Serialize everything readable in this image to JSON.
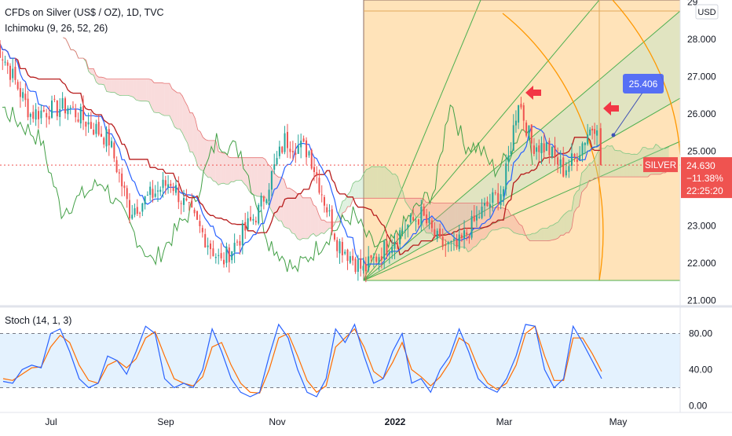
{
  "header": {
    "symbol_title": "CFDs on Silver (US$ / OZ), 1D, TVC",
    "indicator_label": "Ichimoku (9, 26, 52, 26)"
  },
  "stoch_panel": {
    "label": "Stoch (14, 1, 3)"
  },
  "price_axis": {
    "currency_badge": "USD",
    "ticks": [
      "29",
      "28.000",
      "27.000",
      "26.000",
      "25.000",
      "23.000",
      "22.000",
      "21.000"
    ]
  },
  "stoch_axis": {
    "ticks": [
      "80.00",
      "40.00",
      "0.00"
    ]
  },
  "time_axis": {
    "ticks": [
      "Jul",
      "Sep",
      "Nov",
      "2022",
      "Mar",
      "May"
    ]
  },
  "last_price": {
    "symbol_tag": "SILVER",
    "price": "24.630",
    "change": "−11.38%",
    "countdown": "22:25:20"
  },
  "callout": {
    "text": "25.406"
  },
  "colors": {
    "up": "#26a69a",
    "down": "#ef5350",
    "tenkan": "#2962ff",
    "kijun": "#b71c1c",
    "chikou": "#43a047",
    "cloud_green": "#a5d6a7",
    "cloud_red": "#ef9a9a",
    "fan_fill": "#ffcc80",
    "fan_line": "#4caf50",
    "arc": "#ff9800",
    "stoch_k": "#2962ff",
    "stoch_d": "#ff6d00",
    "stoch_band": "#2196f3",
    "arrow": "#f23645",
    "callout": "#3f51b5"
  },
  "chart_data": [
    {
      "type": "candlestick",
      "title": "CFDs on Silver (US$ / OZ), 1D, TVC",
      "ylim": [
        20.95,
        29.05
      ],
      "y_ticks": [
        21,
        22,
        23,
        25,
        26,
        27,
        28,
        29
      ],
      "x_ticks": [
        "Jul",
        "Sep",
        "Nov",
        "2022",
        "Mar",
        "May"
      ],
      "approx_range": [
        "2021-06",
        "2022-04"
      ],
      "path_dates": [
        "2021-06-01",
        "2021-06-20",
        "2021-07-10",
        "2021-08-01",
        "2021-08-12",
        "2021-09-03",
        "2021-09-10",
        "2021-09-30",
        "2021-10-20",
        "2021-11-03",
        "2021-11-16",
        "2021-12-01",
        "2021-12-15",
        "2022-01-05",
        "2022-01-15",
        "2022-01-25",
        "2022-02-03",
        "2022-02-15",
        "2022-02-28",
        "2022-03-08",
        "2022-03-15",
        "2022-03-23",
        "2022-04-01",
        "2022-04-07",
        "2022-04-14",
        "2022-04-19",
        "2022-04-21"
      ],
      "path_close": [
        28.0,
        26.0,
        26.2,
        25.3,
        23.4,
        24.2,
        23.6,
        22.0,
        23.4,
        25.3,
        25.0,
        22.6,
        21.8,
        22.9,
        23.3,
        22.5,
        22.4,
        23.3,
        24.0,
        26.4,
        25.2,
        25.1,
        24.5,
        24.8,
        25.5,
        25.8,
        24.63
      ],
      "last_close": 24.63,
      "change_pct": -11.38,
      "callout_value": 25.406
    },
    {
      "type": "line",
      "title": "Stoch (14, 1, 3)",
      "ylim": [
        -3,
        103
      ],
      "y_ticks": [
        80,
        40,
        0
      ],
      "band": [
        20,
        80
      ],
      "series": [
        {
          "name": "%K",
          "values": [
            27,
            25,
            40,
            45,
            42,
            80,
            85,
            60,
            30,
            20,
            25,
            55,
            50,
            35,
            60,
            88,
            80,
            30,
            20,
            25,
            20,
            40,
            85,
            60,
            30,
            15,
            10,
            15,
            55,
            90,
            75,
            40,
            15,
            10,
            30,
            85,
            70,
            90,
            55,
            25,
            30,
            60,
            80,
            25,
            30,
            15,
            40,
            55,
            85,
            60,
            30,
            20,
            15,
            30,
            55,
            90,
            88,
            40,
            20,
            30,
            88,
            70,
            50,
            30
          ]
        },
        {
          "name": "%D",
          "values": [
            30,
            28,
            35,
            42,
            43,
            65,
            78,
            70,
            45,
            28,
            25,
            45,
            50,
            42,
            52,
            75,
            82,
            55,
            30,
            25,
            22,
            32,
            65,
            70,
            45,
            25,
            15,
            14,
            40,
            75,
            80,
            55,
            28,
            15,
            22,
            65,
            75,
            85,
            65,
            38,
            30,
            48,
            70,
            40,
            32,
            22,
            32,
            48,
            75,
            68,
            42,
            25,
            18,
            25,
            45,
            80,
            88,
            55,
            28,
            28,
            75,
            75,
            58,
            38
          ]
        }
      ]
    }
  ]
}
